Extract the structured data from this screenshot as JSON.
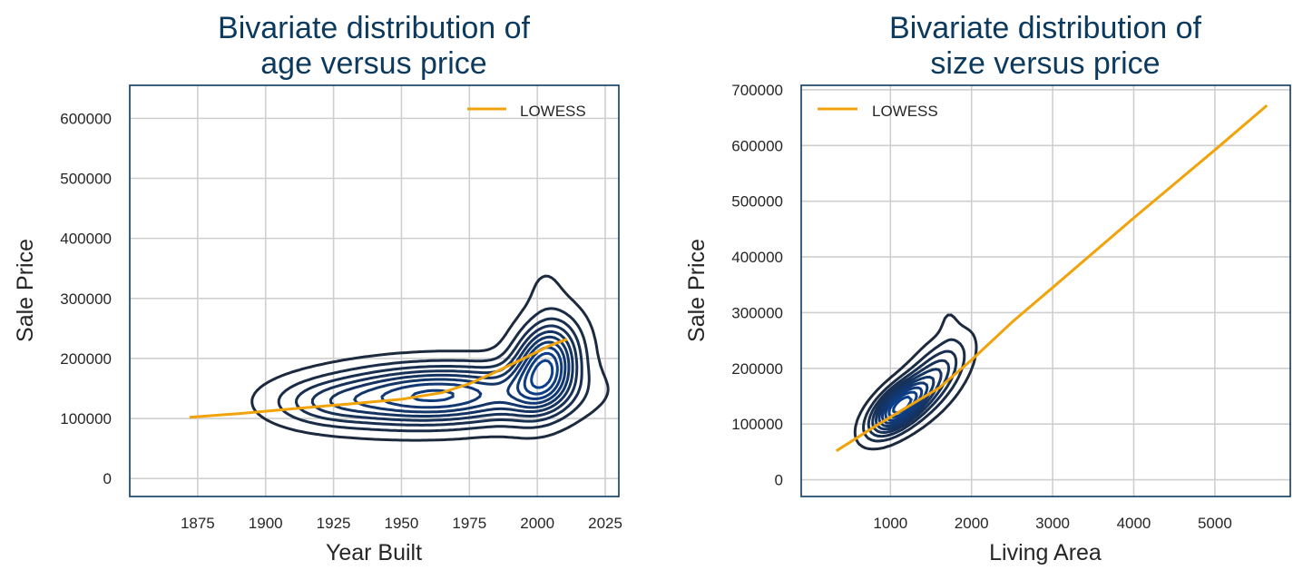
{
  "colors": {
    "title": "#0b3a5e",
    "frame": "#0b3a5e",
    "grid": "#cfcfcf",
    "lowess": "#f0a30a",
    "contour_outer": "#1d2a3e",
    "contour_inner": "#0b3f8c",
    "text": "#262626"
  },
  "chart_data": [
    {
      "type": "contour",
      "title_lines": [
        "Bivariate distribution of",
        "age versus price"
      ],
      "xlabel": "Year Built",
      "ylabel": "Sale Price",
      "xlim": [
        1850,
        2030
      ],
      "ylim": [
        -30000,
        655000
      ],
      "xticks": [
        1875,
        1900,
        1925,
        1950,
        1975,
        2000,
        2025
      ],
      "yticks": [
        0,
        100000,
        200000,
        300000,
        400000,
        500000,
        600000
      ],
      "grid": true,
      "legend": {
        "position": "top-right",
        "entries": [
          "LOWESS"
        ]
      },
      "series": [
        {
          "name": "LOWESS",
          "x": [
            1872,
            1890,
            1910,
            1930,
            1950,
            1965,
            1975,
            1985,
            1995,
            2005,
            2011
          ],
          "y": [
            102000,
            108000,
            116000,
            124000,
            132000,
            143000,
            158000,
            178000,
            200000,
            222000,
            232000
          ]
        }
      ],
      "kde_modes": [
        {
          "x": 1962,
          "y": 138000,
          "sx": 28,
          "sy": 33000,
          "w": 1.0,
          "rho": 0.1
        },
        {
          "x": 2003,
          "y": 188000,
          "sx": 8,
          "sy": 48000,
          "w": 1.15,
          "rho": 0.2
        },
        {
          "x": 1922,
          "y": 125000,
          "sx": 13,
          "sy": 24000,
          "w": 0.2,
          "rho": 0
        },
        {
          "x": 2003,
          "y": 320000,
          "sx": 6,
          "sy": 38000,
          "w": 0.08,
          "rho": 0
        }
      ],
      "contour_levels": 10
    },
    {
      "type": "contour",
      "title_lines": [
        "Bivariate distribution of",
        "size versus price"
      ],
      "xlabel": "Living Area",
      "ylabel": "Sale Price",
      "xlim": [
        -100,
        5930
      ],
      "ylim": [
        -30000,
        708000
      ],
      "xticks": [
        1000,
        2000,
        3000,
        4000,
        5000
      ],
      "yticks": [
        0,
        100000,
        200000,
        300000,
        400000,
        500000,
        600000,
        700000
      ],
      "grid": true,
      "legend": {
        "position": "top-left",
        "entries": [
          "LOWESS"
        ]
      },
      "series": [
        {
          "name": "LOWESS",
          "x": [
            334,
            800,
            1200,
            1600,
            2000,
            2500,
            3000,
            4000,
            5000,
            5642
          ],
          "y": [
            52000,
            95000,
            130000,
            165000,
            215000,
            283000,
            345000,
            470000,
            592000,
            672000
          ]
        }
      ],
      "kde_modes": [
        {
          "x": 1100,
          "y": 130000,
          "sx": 230,
          "sy": 32000,
          "w": 1.0,
          "rho": 0.6
        },
        {
          "x": 1550,
          "y": 185000,
          "sx": 260,
          "sy": 45000,
          "w": 0.45,
          "rho": 0.6
        },
        {
          "x": 1720,
          "y": 285000,
          "sx": 90,
          "sy": 25000,
          "w": 0.06,
          "rho": 0
        }
      ],
      "contour_levels": 10
    }
  ]
}
